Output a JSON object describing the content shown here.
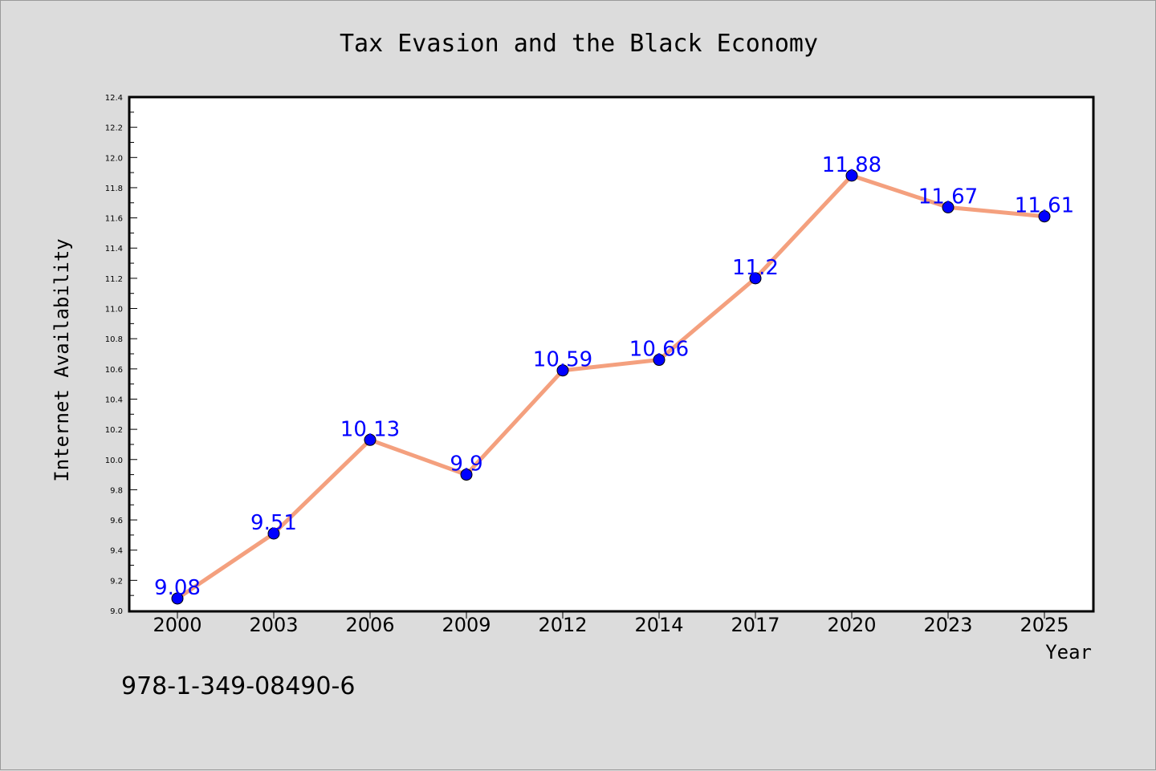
{
  "chart_data": {
    "type": "line",
    "title": "Tax Evasion and the Black Economy",
    "xlabel": "Year",
    "ylabel": "Internet Availability",
    "categories": [
      "2000",
      "2003",
      "2006",
      "2009",
      "2012",
      "2014",
      "2017",
      "2020",
      "2023",
      "2025"
    ],
    "series": [
      {
        "values": [
          9.08,
          9.51,
          10.13,
          9.9,
          10.59,
          10.66,
          11.2,
          11.88,
          11.67,
          11.61
        ],
        "data_labels": [
          "9.08",
          "9.51",
          "10.13",
          "9.9",
          "10.59",
          "10.66",
          "11.2",
          "11.88",
          "11.67",
          "11.61"
        ]
      }
    ],
    "ylim": [
      9.0,
      12.4
    ],
    "yticks": [
      "9.0",
      "9.2",
      "9.4",
      "9.6",
      "9.8",
      "10.0",
      "10.2",
      "10.4",
      "10.6",
      "10.8",
      "11.0",
      "11.2",
      "11.4",
      "11.6",
      "11.8",
      "12.0",
      "12.2",
      "12.4"
    ],
    "grid": false,
    "legend": "none",
    "colors": {
      "line": "#f4a07e",
      "marker": "#0000ff",
      "data_label": "#0000ff",
      "plot_background": "#ffffff",
      "figure_background": "#dcdcdc"
    }
  },
  "footer": {
    "isbn": "978-1-349-08490-6"
  }
}
